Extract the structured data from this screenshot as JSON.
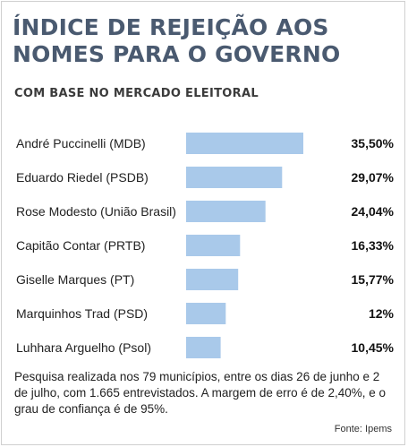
{
  "header": {
    "title_line1": "ÍNDICE DE REJEIÇÃO AOS",
    "title_line2": "NOMES PARA O GOVERNO",
    "subtitle": "COM BASE NO MERCADO ELEITORAL"
  },
  "footer": {
    "note": "Pesquisa realizada nos 79 municípios, entre os dias 26 de junho e 2 de julho, com 1.665 entrevistados. A margem de erro é de 2,40%, e o grau de confiança é de 95%.",
    "source": "Fonte: Ipems"
  },
  "colors": {
    "bar": "#a9c9ea",
    "title": "#4a5a70"
  },
  "chart_data": {
    "type": "bar",
    "orientation": "horizontal",
    "title": "ÍNDICE DE REJEIÇÃO AOS NOMES PARA O GOVERNO",
    "subtitle": "COM BASE NO MERCADO ELEITORAL",
    "categories": [
      "André Puccinelli (MDB)",
      "Eduardo Riedel (PSDB)",
      "Rose Modesto (União Brasil)",
      "Capitão Contar (PRTB)",
      "Giselle Marques (PT)",
      "Marquinhos Trad (PSD)",
      "Luhhara Arguelho (Psol)"
    ],
    "values": [
      35.5,
      29.07,
      24.04,
      16.33,
      15.77,
      12,
      10.45
    ],
    "value_labels": [
      "35,50%",
      "29,07%",
      "24,04%",
      "16,33%",
      "15,77%",
      "12%",
      "10,45%"
    ],
    "xlim": [
      0,
      35.5
    ],
    "grid": false,
    "legend": "none"
  }
}
